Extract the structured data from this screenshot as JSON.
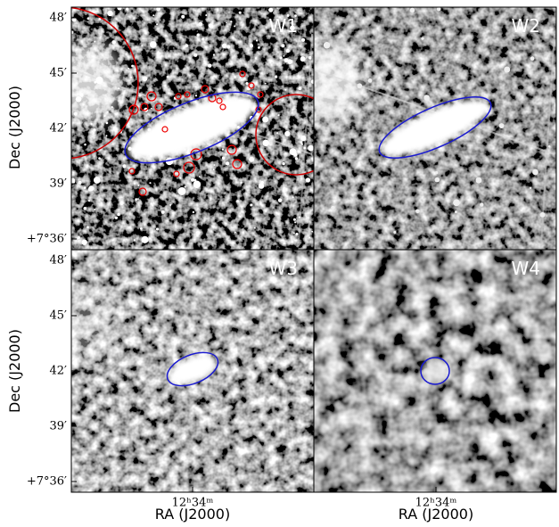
{
  "figure": {
    "panels": [
      {
        "label": "W1"
      },
      {
        "label": "W2"
      },
      {
        "label": "W3"
      },
      {
        "label": "W4"
      }
    ],
    "y_axis": {
      "label": "Dec (J2000)",
      "ticks": [
        "48′",
        "45′",
        "42′",
        "39′",
        "+7°36′"
      ]
    },
    "x_axis": {
      "label": "RA (J2000)",
      "tick": "12ʰ34ᵐ"
    }
  }
}
